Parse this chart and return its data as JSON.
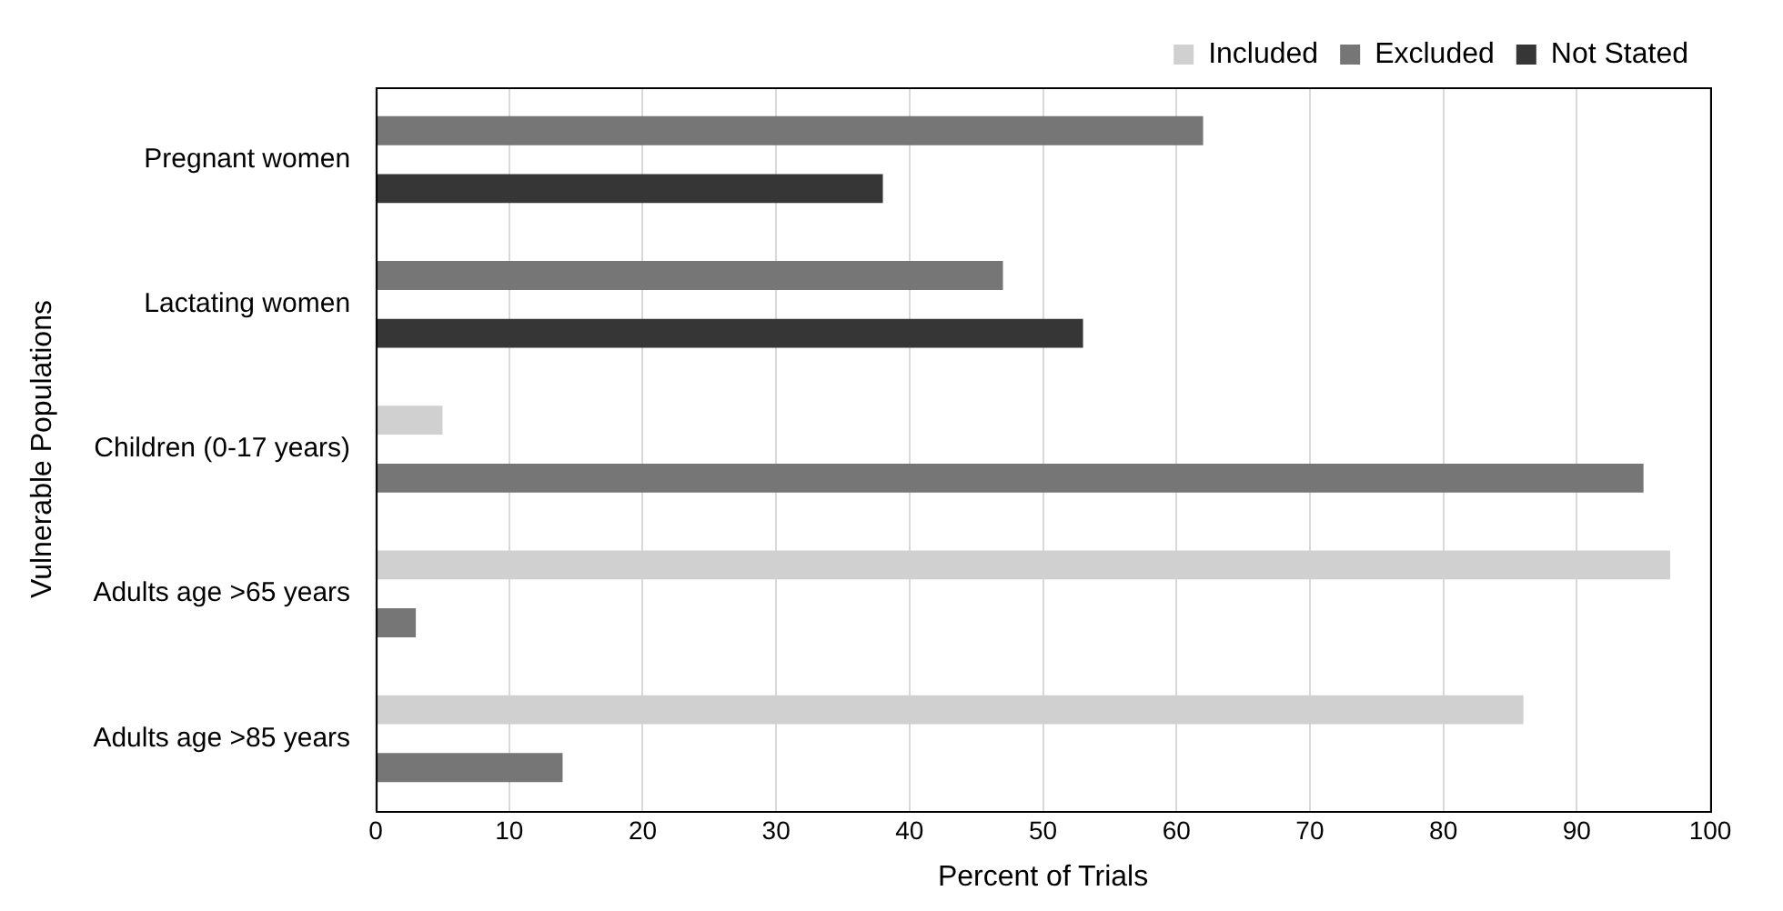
{
  "chart_data": {
    "type": "bar",
    "orientation": "horizontal",
    "xlabel": "Percent of Trials",
    "ylabel": "Vulnerable Populations",
    "categories": [
      "Pregnant women",
      "Lactating women",
      "Children (0-17 years)",
      "Adults age >65 years",
      "Adults age >85 years"
    ],
    "series": [
      {
        "name": "Included",
        "color": "#d0d0d0",
        "values": [
          null,
          null,
          5,
          97,
          86
        ]
      },
      {
        "name": "Excluded",
        "color": "#767676",
        "values": [
          62,
          47,
          95,
          3,
          14
        ]
      },
      {
        "name": "Not Stated",
        "color": "#363636",
        "values": [
          38,
          53,
          null,
          null,
          null
        ]
      }
    ],
    "xlim": [
      0,
      100
    ],
    "xticks": [
      0,
      10,
      20,
      30,
      40,
      50,
      60,
      70,
      80,
      90,
      100
    ],
    "grid": "x",
    "legend": "top right"
  }
}
